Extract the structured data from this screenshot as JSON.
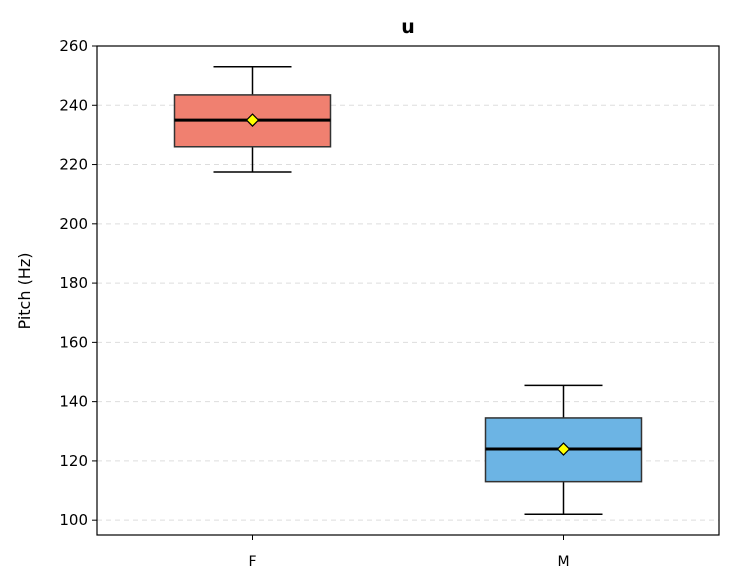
{
  "chart_data": {
    "type": "box",
    "title": "u",
    "xlabel": "",
    "ylabel": "Pitch (Hz)",
    "ylim": [
      95,
      260
    ],
    "yticks": [
      100,
      120,
      140,
      160,
      180,
      200,
      220,
      240,
      260
    ],
    "grid": "horizontal-dashed",
    "categories": [
      "F",
      "M"
    ],
    "boxes": [
      {
        "category": "F",
        "whisker_low": 217.5,
        "q1": 226,
        "median": 235,
        "q3": 243.5,
        "whisker_high": 253,
        "mean": 235,
        "color": "#f08070"
      },
      {
        "category": "M",
        "whisker_low": 102,
        "q1": 113,
        "median": 124,
        "q3": 134.5,
        "whisker_high": 145.5,
        "mean": 124,
        "color": "#6cb4e4"
      }
    ],
    "mean_marker_color": "#ffff00"
  }
}
